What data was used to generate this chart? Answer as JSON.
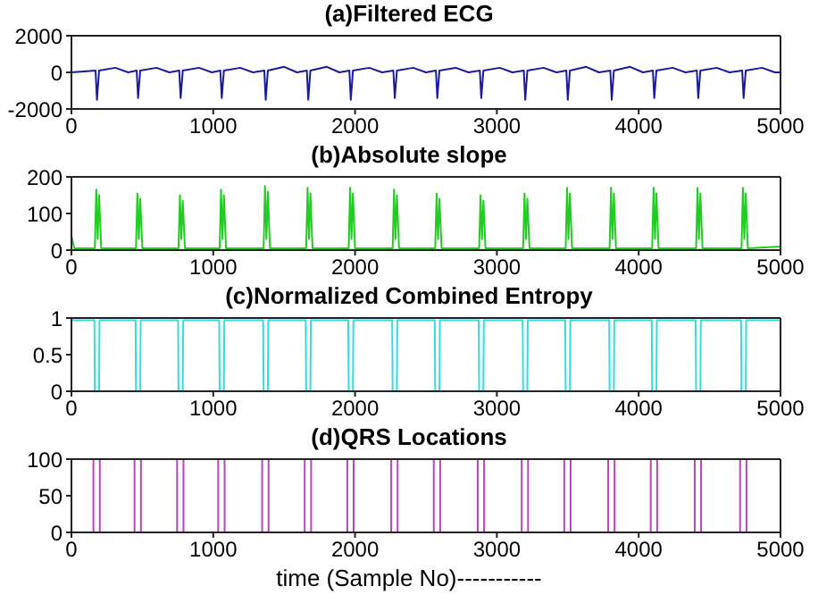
{
  "chart_data": [
    {
      "type": "line",
      "title": "(a)Filtered ECG",
      "color": "#1a1aa0",
      "xlim": [
        0,
        5000
      ],
      "xticks": [
        0,
        1000,
        2000,
        3000,
        4000,
        5000
      ],
      "ylim": [
        -2000,
        2000
      ],
      "yticks": [
        -2000,
        0,
        2000
      ],
      "x": [
        0,
        170,
        180,
        195,
        310,
        400,
        460,
        470,
        485,
        600,
        690,
        760,
        770,
        785,
        900,
        990,
        1050,
        1060,
        1075,
        1190,
        1280,
        1360,
        1370,
        1385,
        1500,
        1590,
        1660,
        1670,
        1685,
        1800,
        1890,
        1960,
        1970,
        1985,
        2100,
        2190,
        2270,
        2280,
        2295,
        2410,
        2500,
        2570,
        2580,
        2595,
        2710,
        2800,
        2880,
        2890,
        2905,
        3020,
        3110,
        3190,
        3200,
        3215,
        3330,
        3420,
        3490,
        3500,
        3515,
        3630,
        3720,
        3800,
        3810,
        3825,
        3940,
        4030,
        4100,
        4110,
        4125,
        4240,
        4330,
        4410,
        4420,
        4435,
        4550,
        4640,
        4730,
        4740,
        4755,
        4870,
        4960,
        5000
      ],
      "values": [
        0,
        100,
        -1500,
        100,
        250,
        0,
        100,
        -1400,
        100,
        250,
        0,
        100,
        -1400,
        100,
        250,
        0,
        100,
        -1400,
        100,
        250,
        0,
        100,
        -1500,
        100,
        300,
        0,
        100,
        -1500,
        100,
        300,
        0,
        100,
        -1500,
        100,
        250,
        0,
        100,
        -1400,
        100,
        250,
        0,
        100,
        -1400,
        100,
        250,
        0,
        100,
        -1400,
        100,
        250,
        0,
        100,
        -1500,
        100,
        250,
        0,
        100,
        -1500,
        100,
        300,
        0,
        100,
        -1500,
        100,
        300,
        0,
        100,
        -1400,
        100,
        250,
        0,
        100,
        -1400,
        100,
        250,
        0,
        100,
        -1400,
        100,
        250,
        0,
        0
      ]
    },
    {
      "type": "line",
      "title": "(b)Absolute slope",
      "color": "#22cc22",
      "xlim": [
        0,
        5000
      ],
      "xticks": [
        0,
        1000,
        2000,
        3000,
        4000,
        5000
      ],
      "ylim": [
        0,
        200
      ],
      "yticks": [
        0,
        100,
        200
      ],
      "x": [
        0,
        20,
        165,
        175,
        185,
        195,
        210,
        455,
        465,
        475,
        485,
        500,
        755,
        765,
        775,
        785,
        800,
        1045,
        1055,
        1065,
        1075,
        1090,
        1355,
        1365,
        1375,
        1385,
        1400,
        1655,
        1665,
        1675,
        1685,
        1700,
        1955,
        1965,
        1975,
        1985,
        2000,
        2265,
        2275,
        2285,
        2295,
        2310,
        2565,
        2575,
        2585,
        2595,
        2610,
        2875,
        2885,
        2895,
        2905,
        2920,
        3185,
        3195,
        3205,
        3215,
        3230,
        3485,
        3495,
        3505,
        3515,
        3530,
        3795,
        3805,
        3815,
        3825,
        3840,
        4095,
        4105,
        4115,
        4125,
        4140,
        4405,
        4415,
        4425,
        4435,
        4450,
        4725,
        4735,
        4745,
        4755,
        4770,
        5000
      ],
      "values": [
        40,
        5,
        5,
        165,
        30,
        150,
        5,
        5,
        155,
        30,
        140,
        5,
        5,
        150,
        30,
        135,
        5,
        5,
        165,
        30,
        150,
        5,
        5,
        175,
        30,
        160,
        5,
        5,
        170,
        30,
        155,
        5,
        5,
        170,
        30,
        155,
        5,
        5,
        165,
        30,
        150,
        5,
        5,
        155,
        30,
        140,
        5,
        5,
        150,
        30,
        135,
        5,
        5,
        155,
        30,
        140,
        5,
        5,
        170,
        30,
        155,
        5,
        5,
        170,
        30,
        155,
        5,
        5,
        170,
        30,
        155,
        5,
        5,
        170,
        30,
        155,
        5,
        5,
        170,
        30,
        155,
        5,
        10
      ]
    },
    {
      "type": "line",
      "title": "(c)Normalized Combined Entropy",
      "color": "#33dddd",
      "xlim": [
        0,
        5000
      ],
      "xticks": [
        0,
        1000,
        2000,
        3000,
        4000,
        5000
      ],
      "ylim": [
        0,
        1
      ],
      "yticks": [
        0,
        0.5,
        1
      ],
      "x": [
        0,
        162,
        165,
        195,
        198,
        452,
        455,
        485,
        488,
        752,
        755,
        785,
        788,
        1042,
        1045,
        1075,
        1078,
        1352,
        1355,
        1385,
        1388,
        1652,
        1655,
        1685,
        1688,
        1952,
        1955,
        1985,
        1988,
        2262,
        2265,
        2295,
        2298,
        2562,
        2565,
        2595,
        2598,
        2872,
        2875,
        2905,
        2908,
        3182,
        3185,
        3215,
        3218,
        3482,
        3485,
        3515,
        3518,
        3792,
        3795,
        3825,
        3828,
        4092,
        4095,
        4125,
        4128,
        4402,
        4405,
        4435,
        4438,
        4722,
        4725,
        4755,
        4758,
        5000
      ],
      "values": [
        0.97,
        0.97,
        0,
        0,
        0.97,
        0.97,
        0,
        0,
        0.97,
        0.97,
        0,
        0,
        0.97,
        0.97,
        0,
        0,
        0.97,
        0.97,
        0,
        0,
        0.97,
        0.97,
        0,
        0,
        0.97,
        0.97,
        0,
        0,
        0.97,
        0.97,
        0,
        0,
        0.97,
        0.97,
        0,
        0,
        0.97,
        0.97,
        0,
        0,
        0.97,
        0.97,
        0,
        0,
        0.97,
        0.97,
        0,
        0,
        0.97,
        0.97,
        0,
        0,
        0.97,
        0.97,
        0,
        0,
        0.97,
        0.97,
        0,
        0,
        0.97,
        0.97,
        0,
        0,
        0.97,
        0.97
      ]
    },
    {
      "type": "line",
      "title": "(d)QRS Locations",
      "xlabel": "time (Sample No)-----------",
      "color": "#bb44bb",
      "xlim": [
        0,
        5000
      ],
      "xticks": [
        0,
        1000,
        2000,
        3000,
        4000,
        5000
      ],
      "ylim": [
        0,
        100
      ],
      "yticks": [
        0,
        50,
        100
      ],
      "x": [
        0,
        155,
        155,
        200,
        200,
        445,
        445,
        490,
        490,
        745,
        745,
        790,
        790,
        1035,
        1035,
        1080,
        1080,
        1345,
        1345,
        1390,
        1390,
        1645,
        1645,
        1690,
        1690,
        1945,
        1945,
        1990,
        1990,
        2255,
        2255,
        2300,
        2300,
        2555,
        2555,
        2600,
        2600,
        2865,
        2865,
        2910,
        2910,
        3175,
        3175,
        3220,
        3220,
        3475,
        3475,
        3520,
        3520,
        3785,
        3785,
        3830,
        3830,
        4085,
        4085,
        4130,
        4130,
        4395,
        4395,
        4440,
        4440,
        4715,
        4715,
        4760,
        4760,
        5000
      ],
      "values": [
        0,
        0,
        100,
        100,
        0,
        0,
        100,
        100,
        0,
        0,
        100,
        100,
        0,
        0,
        100,
        100,
        0,
        0,
        100,
        100,
        0,
        0,
        100,
        100,
        0,
        0,
        100,
        100,
        0,
        0,
        100,
        100,
        0,
        0,
        100,
        100,
        0,
        0,
        100,
        100,
        0,
        0,
        100,
        100,
        0,
        0,
        100,
        100,
        0,
        0,
        100,
        100,
        0,
        0,
        100,
        100,
        0,
        0,
        100,
        100,
        0,
        0,
        100,
        100,
        0,
        0
      ]
    }
  ]
}
